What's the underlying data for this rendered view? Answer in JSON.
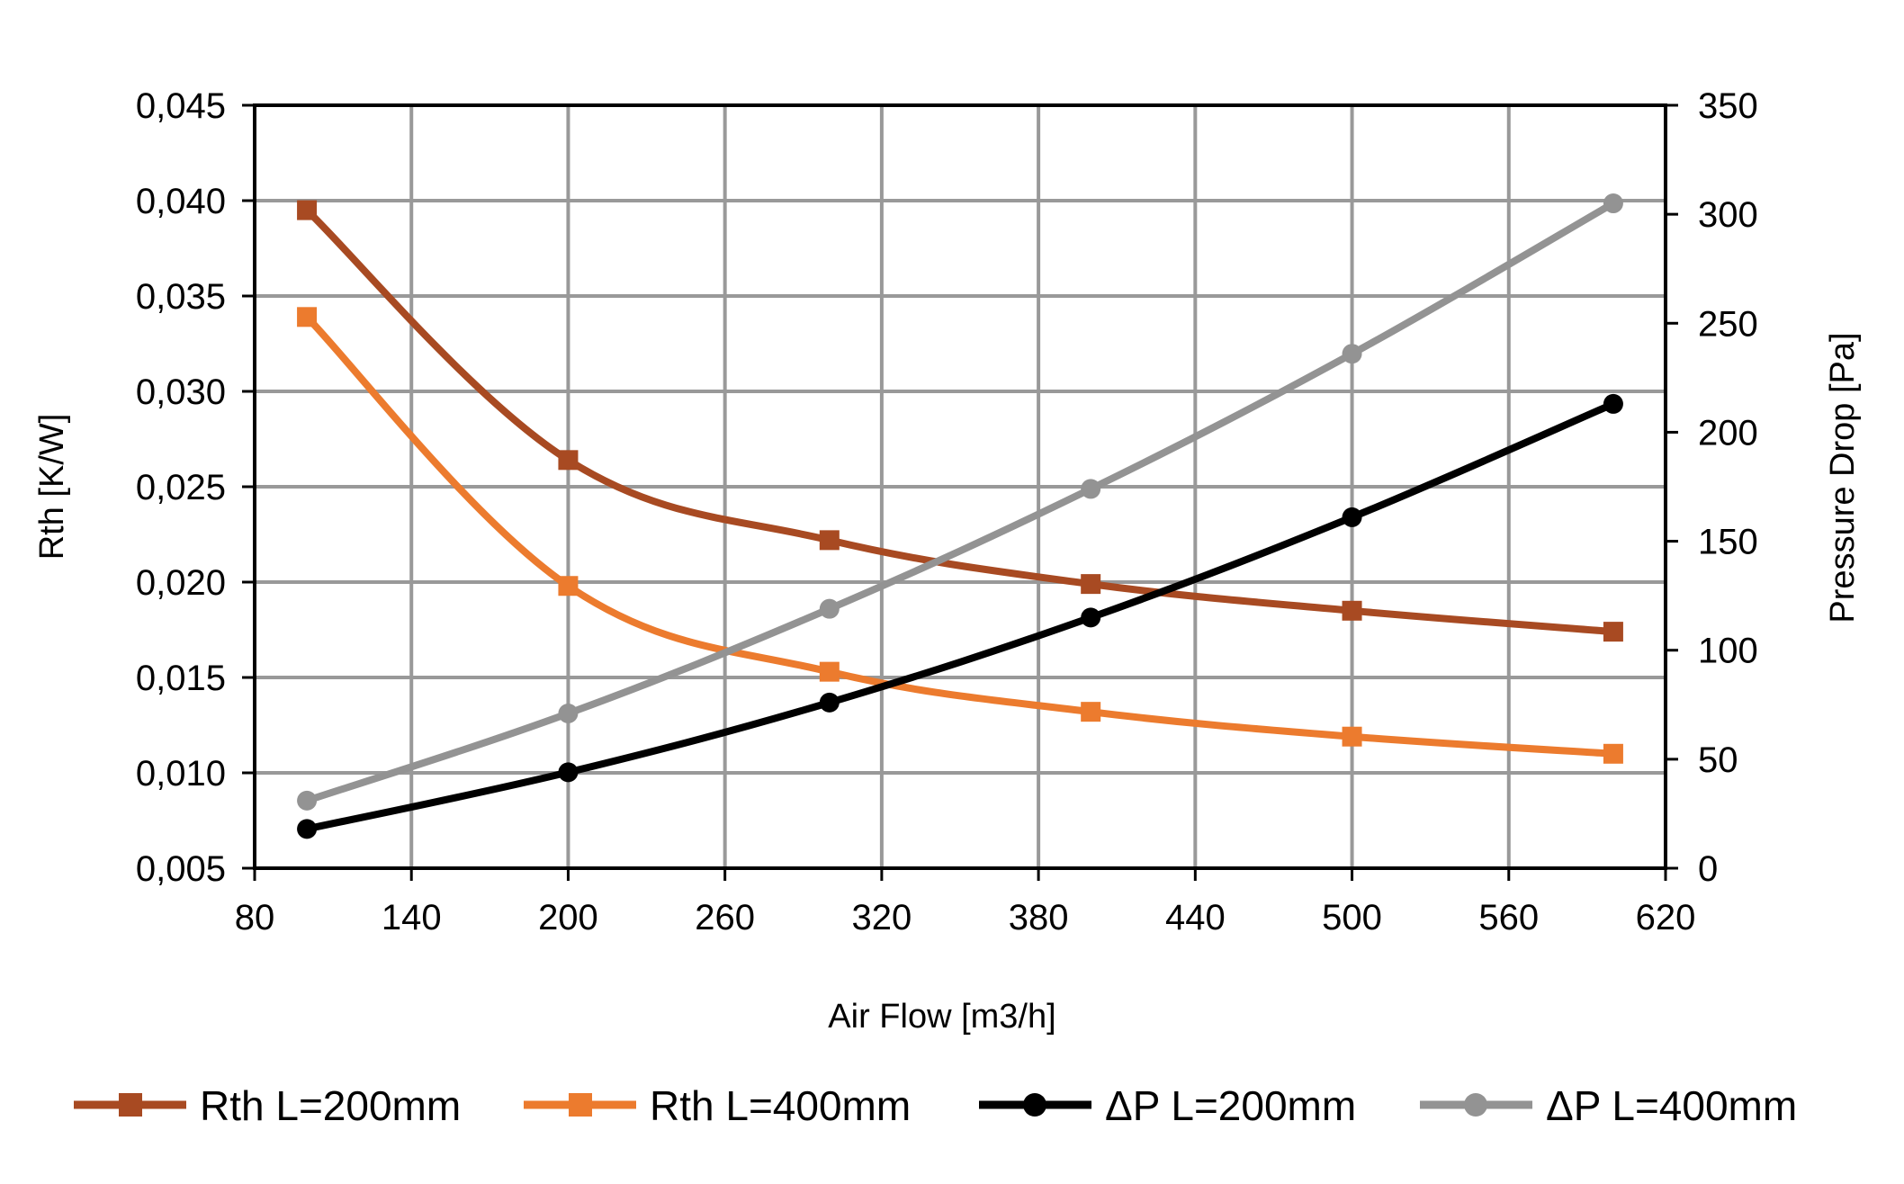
{
  "chart_data": {
    "type": "line",
    "title": "",
    "xlabel": "Air Flow [m3/h]",
    "ylabel_left": "Rth [K/W]",
    "ylabel_right": "Pressure Drop [Pa]",
    "xlim": [
      80,
      620
    ],
    "ylim_left": [
      0.005,
      0.045
    ],
    "ylim_right": [
      0,
      350
    ],
    "x_ticks": [
      80,
      140,
      200,
      260,
      320,
      380,
      440,
      500,
      560,
      620
    ],
    "x_tick_labels": [
      "80",
      "140",
      "200",
      "260",
      "320",
      "380",
      "440",
      "500",
      "560",
      "620"
    ],
    "y_left_ticks": [
      0.005,
      0.01,
      0.015,
      0.02,
      0.025,
      0.03,
      0.035,
      0.04,
      0.045
    ],
    "y_left_tick_labels": [
      "0,005",
      "0,010",
      "0,015",
      "0,020",
      "0,025",
      "0,030",
      "0,035",
      "0,040",
      "0,045"
    ],
    "y_right_ticks": [
      0,
      50,
      100,
      150,
      200,
      250,
      300,
      350
    ],
    "y_right_tick_labels": [
      "0",
      "50",
      "100",
      "150",
      "200",
      "250",
      "300",
      "350"
    ],
    "grid": true,
    "legend_position": "bottom",
    "x": [
      100,
      200,
      300,
      400,
      500,
      600
    ],
    "series": [
      {
        "name": "Rth L=200mm",
        "axis": "left",
        "marker": "square",
        "color": "#A84A22",
        "values": [
          0.0395,
          0.0264,
          0.0222,
          0.0199,
          0.0185,
          0.0174
        ]
      },
      {
        "name": "Rth L=400mm",
        "axis": "left",
        "marker": "square",
        "color": "#EC7B2E",
        "values": [
          0.0339,
          0.0198,
          0.0153,
          0.0132,
          0.0119,
          0.011
        ]
      },
      {
        "name": "ΔP L=200mm",
        "axis": "right",
        "marker": "circle",
        "color": "#000000",
        "values": [
          18,
          44,
          76,
          115,
          161,
          213
        ]
      },
      {
        "name": "ΔP L=400mm",
        "axis": "right",
        "marker": "circle",
        "color": "#939393",
        "values": [
          31,
          71,
          119,
          174,
          236,
          305
        ]
      }
    ],
    "colors": {
      "grid": "#999999",
      "axis": "#000000"
    }
  }
}
